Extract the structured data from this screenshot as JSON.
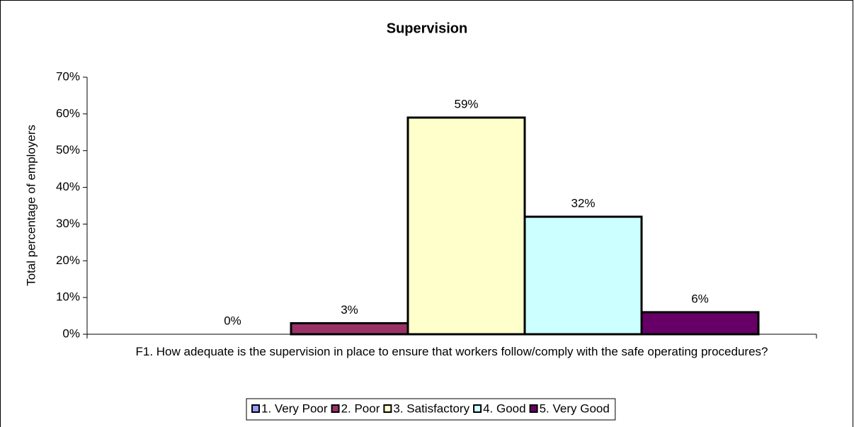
{
  "chart_data": {
    "type": "bar",
    "title": "Supervision",
    "y_label": "Total percentage of employers",
    "categories": [
      "F1. How adequate is the supervision in place to ensure that workers follow/comply with the safe operating procedures?"
    ],
    "series": [
      {
        "name": "1. Very Poor",
        "color": "#9999ff",
        "values": [
          0
        ],
        "value_labels": [
          "0%"
        ]
      },
      {
        "name": "2. Poor",
        "color": "#993366",
        "values": [
          3
        ],
        "value_labels": [
          "3%"
        ]
      },
      {
        "name": "3. Satisfactory",
        "color": "#ffffcc",
        "values": [
          59
        ],
        "value_labels": [
          "59%"
        ]
      },
      {
        "name": "4. Good",
        "color": "#ccffff",
        "values": [
          32
        ],
        "value_labels": [
          "32%"
        ]
      },
      {
        "name": "5. Very Good",
        "color": "#660066",
        "values": [
          6
        ],
        "value_labels": [
          "6%"
        ]
      }
    ],
    "ylim": [
      0,
      70
    ],
    "yticks": [
      {
        "value": 0,
        "label": "0%"
      },
      {
        "value": 10,
        "label": "10%"
      },
      {
        "value": 20,
        "label": "20%"
      },
      {
        "value": 30,
        "label": "30%"
      },
      {
        "value": 40,
        "label": "40%"
      },
      {
        "value": 50,
        "label": "50%"
      },
      {
        "value": 60,
        "label": "60%"
      },
      {
        "value": 70,
        "label": "70%"
      }
    ],
    "grid": false,
    "legend": "bottom"
  }
}
